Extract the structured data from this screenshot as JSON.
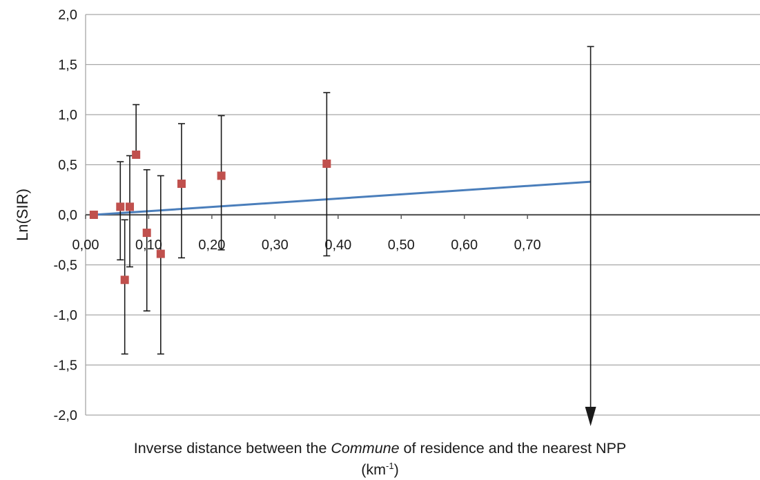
{
  "chart_data": {
    "type": "scatter",
    "title": "",
    "ylabel": "Ln(SIR)",
    "xlabel": {
      "before": "Inverse distance between the ",
      "italic": "Commune",
      "after": " of residence and the nearest NPP",
      "unit_base": "(km",
      "unit_sup": "-1",
      "unit_close": ")"
    },
    "xlim": [
      0.0,
      0.8
    ],
    "ylim": [
      -2.0,
      2.0
    ],
    "x_ticks": [
      0.0,
      0.1,
      0.2,
      0.3,
      0.4,
      0.5,
      0.6,
      0.7
    ],
    "x_tick_labels": [
      "0,00",
      "0,10",
      "0,20",
      "0,30",
      "0,40",
      "0,50",
      "0,60",
      "0,70"
    ],
    "y_ticks": [
      2.0,
      1.5,
      1.0,
      0.5,
      0.0,
      -0.5,
      -1.0,
      -1.5,
      -2.0
    ],
    "y_tick_labels": [
      "2,0",
      "1,5",
      "1,0",
      "0,5",
      "0,0",
      "-0,5",
      "-1,0",
      "-1,5",
      "-2,0"
    ],
    "grid": true,
    "points": [
      {
        "x": 0.013,
        "y": 0.0,
        "lower": null,
        "upper": null
      },
      {
        "x": 0.055,
        "y": 0.08,
        "lower": -0.45,
        "upper": 0.53
      },
      {
        "x": 0.062,
        "y": -0.65,
        "lower": -1.39,
        "upper": -0.05
      },
      {
        "x": 0.07,
        "y": 0.08,
        "lower": -0.52,
        "upper": 0.59
      },
      {
        "x": 0.08,
        "y": 0.6,
        "lower": null,
        "upper": 1.1
      },
      {
        "x": 0.097,
        "y": -0.18,
        "lower": -0.96,
        "upper": 0.45
      },
      {
        "x": 0.119,
        "y": -0.39,
        "lower": -1.39,
        "upper": 0.39
      },
      {
        "x": 0.152,
        "y": 0.31,
        "lower": -0.43,
        "upper": 0.91
      },
      {
        "x": 0.215,
        "y": 0.39,
        "lower": -0.35,
        "upper": 0.99
      },
      {
        "x": 0.382,
        "y": 0.51,
        "lower": -0.41,
        "upper": 1.22
      },
      {
        "x": 0.8,
        "y": null,
        "lower": -2.0,
        "upper": 1.68,
        "lower_arrow": true
      }
    ],
    "trendline": {
      "x": [
        0.013,
        0.8
      ],
      "y": [
        0.0,
        0.33
      ]
    },
    "colors": {
      "points": "#c0504d",
      "trendline": "#4a7ebb",
      "grid": "#a6a6a6",
      "zero_axis": "#595959",
      "error_bars": "#1a1a1a"
    }
  }
}
